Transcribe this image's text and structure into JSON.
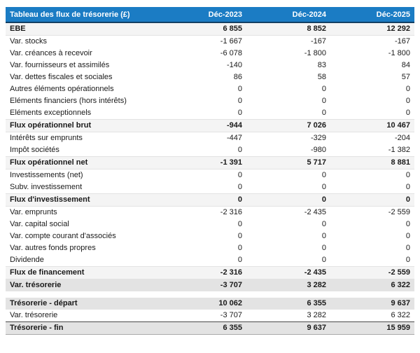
{
  "table": {
    "title": "Tableau des flux de trésorerie (£)",
    "columns": [
      "Déc-2023",
      "Déc-2024",
      "Déc-2025"
    ],
    "rows": [
      {
        "label": "EBE",
        "values": [
          "6 855",
          "8 852",
          "12 292"
        ],
        "style": "section"
      },
      {
        "label": "Var. stocks",
        "values": [
          "-1 667",
          "-167",
          "-167"
        ],
        "style": "normal"
      },
      {
        "label": "Var. créances à recevoir",
        "values": [
          "-6 078",
          "-1 800",
          "-1 800"
        ],
        "style": "normal"
      },
      {
        "label": "Var. fournisseurs et assimilés",
        "values": [
          "-140",
          "83",
          "84"
        ],
        "style": "normal"
      },
      {
        "label": "Var. dettes fiscales et sociales",
        "values": [
          "86",
          "58",
          "57"
        ],
        "style": "normal"
      },
      {
        "label": "Autres éléments opérationnels",
        "values": [
          "0",
          "0",
          "0"
        ],
        "style": "normal"
      },
      {
        "label": "Eléments financiers (hors intérêts)",
        "values": [
          "0",
          "0",
          "0"
        ],
        "style": "normal"
      },
      {
        "label": "Eléments exceptionnels",
        "values": [
          "0",
          "0",
          "0"
        ],
        "style": "normal"
      },
      {
        "label": "Flux opérationnel brut",
        "values": [
          "-944",
          "7 026",
          "10 467"
        ],
        "style": "section"
      },
      {
        "label": "Intérêts sur emprunts",
        "values": [
          "-447",
          "-329",
          "-204"
        ],
        "style": "normal"
      },
      {
        "label": "Impôt sociétés",
        "values": [
          "0",
          "-980",
          "-1 382"
        ],
        "style": "normal"
      },
      {
        "label": "Flux opérationnel net",
        "values": [
          "-1 391",
          "5 717",
          "8 881"
        ],
        "style": "section"
      },
      {
        "label": "Investissements (net)",
        "values": [
          "0",
          "0",
          "0"
        ],
        "style": "normal"
      },
      {
        "label": "Subv. investissement",
        "values": [
          "0",
          "0",
          "0"
        ],
        "style": "normal"
      },
      {
        "label": "Flux d'investissement",
        "values": [
          "0",
          "0",
          "0"
        ],
        "style": "section"
      },
      {
        "label": "Var. emprunts",
        "values": [
          "-2 316",
          "-2 435",
          "-2 559"
        ],
        "style": "normal"
      },
      {
        "label": "Var. capital social",
        "values": [
          "0",
          "0",
          "0"
        ],
        "style": "normal"
      },
      {
        "label": "Var. compte courant d'associés",
        "values": [
          "0",
          "0",
          "0"
        ],
        "style": "normal"
      },
      {
        "label": "Var. autres fonds propres",
        "values": [
          "0",
          "0",
          "0"
        ],
        "style": "normal"
      },
      {
        "label": "Dividende",
        "values": [
          "0",
          "0",
          "0"
        ],
        "style": "normal"
      },
      {
        "label": "Flux de financement",
        "values": [
          "-2 316",
          "-2 435",
          "-2 559"
        ],
        "style": "section"
      },
      {
        "label": "Var. trésorerie",
        "values": [
          "-3 707",
          "3 282",
          "6 322"
        ],
        "style": "summary"
      },
      {
        "label": "",
        "values": [
          "",
          "",
          ""
        ],
        "style": "spacer"
      },
      {
        "label": "Trésorerie - départ",
        "values": [
          "10 062",
          "6 355",
          "9 637"
        ],
        "style": "summary"
      },
      {
        "label": "Var. trésorerie",
        "values": [
          "-3 707",
          "3 282",
          "6 322"
        ],
        "style": "normal"
      },
      {
        "label": "Trésorerie - fin",
        "values": [
          "6 355",
          "9 637",
          "15 959"
        ],
        "style": "final"
      }
    ]
  },
  "colors": {
    "header_bg": "#1b7cc4",
    "header_border": "#123f63",
    "section_bg": "#f4f4f4",
    "summary_bg": "#e3e3e3",
    "header_text": "#ffffff",
    "body_text": "#1a1a1a"
  }
}
